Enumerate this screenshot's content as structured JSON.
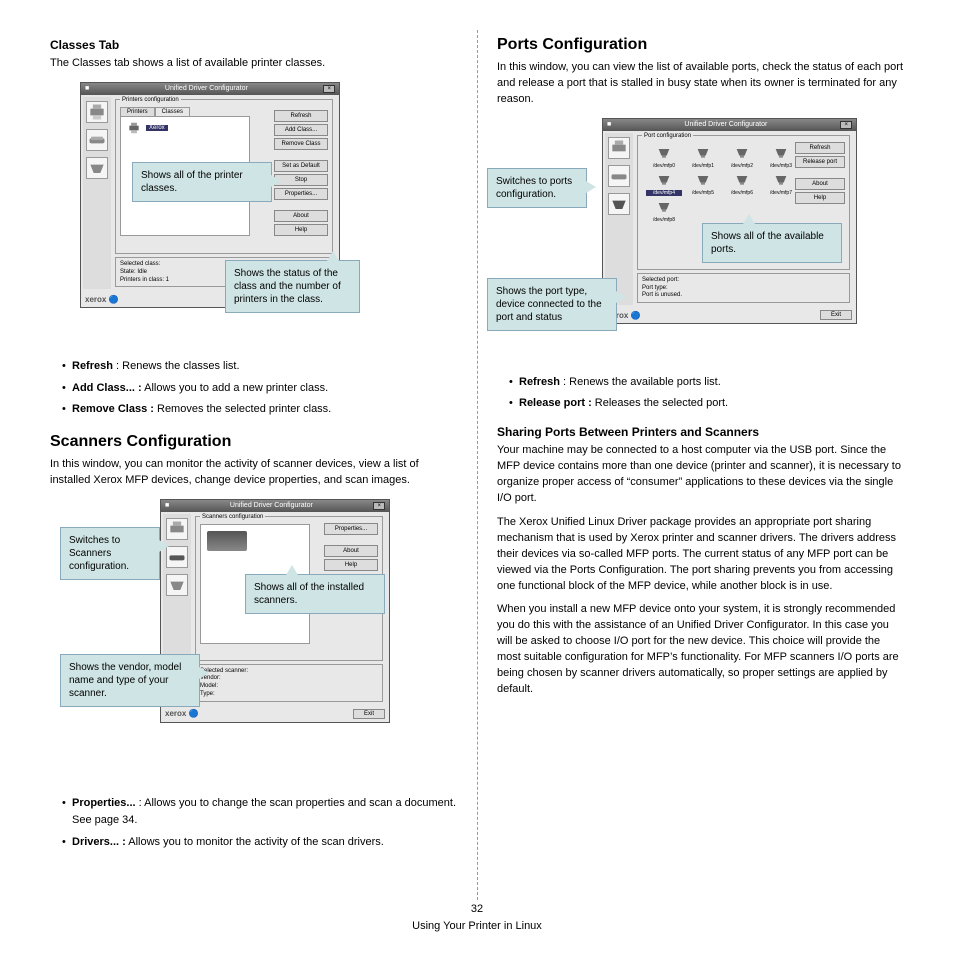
{
  "page": {
    "number": "32",
    "footer_text": "Using Your Printer in Linux"
  },
  "colors": {
    "callout_bg": "#cfe4e4",
    "callout_border": "#8ab"
  },
  "dialog_common": {
    "title": "Unified Driver Configurator",
    "close": "×",
    "logo": "xerox",
    "exit": "Exit"
  },
  "classes": {
    "heading": "Classes Tab",
    "intro": "The Classes tab shows a list of available printer classes.",
    "group_title": "Printers configuration",
    "tabs": {
      "printers": "Printers",
      "classes": "Classes"
    },
    "item_label": "Xerox",
    "buttons": {
      "refresh": "Refresh",
      "add": "Add Class...",
      "remove": "Remove Class",
      "setdef": "Set as Default",
      "stop": "Stop",
      "props": "Properties...",
      "about": "About",
      "help": "Help"
    },
    "selected_group": "Selected class:",
    "selected_lines": {
      "state": "State: Idle",
      "count": "Printers in class: 1"
    },
    "callouts": {
      "shows_classes": "Shows all of the printer classes.",
      "shows_status": "Shows the status of the class and the number of printers in the class."
    },
    "bullets": [
      {
        "b": "Refresh",
        "t": " : Renews the classes list."
      },
      {
        "b": "Add Class... :",
        "t": " Allows you to add a new printer class."
      },
      {
        "b": "Remove Class :",
        "t": " Removes the selected printer class."
      }
    ]
  },
  "scanners": {
    "heading": "Scanners Configuration",
    "intro": "In this window, you can monitor the activity of scanner devices, view a list of installed Xerox MFP devices, change device properties, and scan images.",
    "group_title": "Scanners configuration",
    "buttons": {
      "props": "Properties...",
      "about": "About",
      "help": "Help"
    },
    "selected_group": "Selected scanner:",
    "selected_lines": {
      "vendor": "Vendor:",
      "model": "Model:",
      "type": "Type:"
    },
    "callouts": {
      "switch": "Switches to Scanners configuration.",
      "shows_installed": "Shows all of the installed scanners.",
      "shows_vendor": "Shows the vendor, model name and type of your scanner."
    },
    "bullets": [
      {
        "b": "Properties...",
        "t": " : Allows you to change the scan properties and scan a document. See page 34."
      },
      {
        "b": "Drivers... :",
        "t": " Allows you to monitor the activity of the scan drivers."
      }
    ]
  },
  "ports": {
    "heading": "Ports Configuration",
    "intro": "In this window, you can view the list of available ports, check the status of each port and release a port that is stalled in busy state when its owner is terminated for any reason.",
    "group_title": "Port configuration",
    "buttons": {
      "refresh": "Refresh",
      "release": "Release port",
      "about": "About",
      "help": "Help"
    },
    "port_labels": [
      "/dev/mfp0",
      "/dev/mfp1",
      "/dev/mfp2",
      "/dev/mfp3",
      "/dev/mfp4",
      "/dev/mfp5",
      "/dev/mfp6",
      "/dev/mfp7",
      "/dev/mfp8"
    ],
    "selected_index": 4,
    "selected_group": "Selected port:",
    "selected_lines": {
      "type": "Port type:",
      "unused": "Port is unused."
    },
    "callouts": {
      "switch": "Switches to ports configuration.",
      "shows_ports": "Shows all of the available ports.",
      "shows_type": "Shows the port type, device connected to the port and status"
    },
    "bullets": [
      {
        "b": "Refresh",
        "t": " : Renews the available ports list."
      },
      {
        "b": "Release port :",
        "t": " Releases the selected port."
      }
    ],
    "sharing": {
      "heading": "Sharing Ports Between Printers and Scanners",
      "p1": "Your machine may be connected to a host computer via the USB port. Since the MFP device contains more than one device (printer and scanner), it is necessary to organize proper access of “consumer” applications to these devices via the single I/O port.",
      "p2": "The Xerox Unified Linux Driver package provides an appropriate port sharing mechanism that is used by Xerox printer and scanner drivers. The drivers address their devices via so-called MFP ports. The current status of any MFP port can be viewed via the Ports Configuration. The port sharing prevents you from accessing one functional block of the MFP device, while another block is in use.",
      "p3": "When you install a new MFP device onto your system, it is strongly recommended you do this with the assistance of an Unified Driver Configurator. In this case you will be asked to choose I/O port for the new device. This choice will provide the most suitable configuration for MFP’s functionality. For MFP scanners I/O ports are being chosen by scanner drivers automatically, so proper settings are applied by default."
    }
  }
}
